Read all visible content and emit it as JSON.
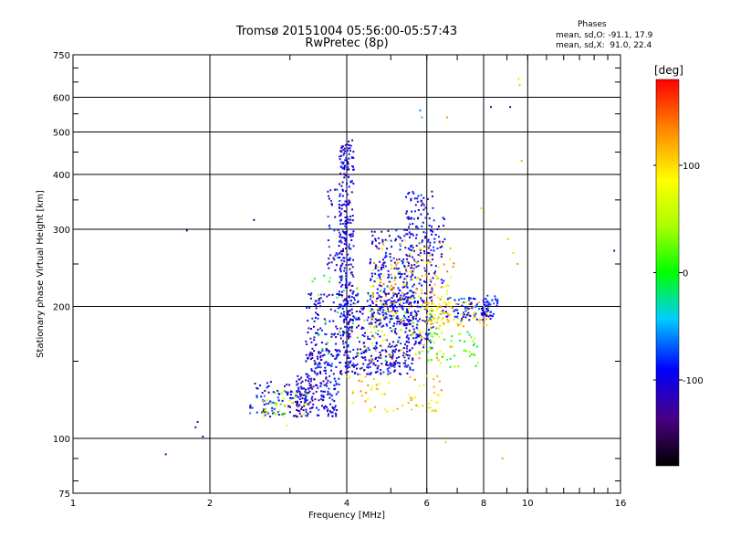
{
  "header": {
    "title_line1": "Tromsø 20151004 05:56:00-05:57:43",
    "title_line2": "RwPretec (8p)"
  },
  "stats": {
    "heading": "Phases",
    "line1": "mean, sd,O: -91.1, 17.9",
    "line2": "mean, sd,X:  91.0, 22.4"
  },
  "colorbar": {
    "label": "[deg]",
    "ticks": [
      {
        "value": 100,
        "label": "100"
      },
      {
        "value": 0,
        "label": "0"
      },
      {
        "value": -100,
        "label": "-100"
      }
    ],
    "range": [
      -180,
      180
    ]
  },
  "chart_data": {
    "type": "scatter",
    "xlabel": "Frequency [MHz]",
    "ylabel": "Stationary phase Virtual Height [km]",
    "xscale": "log",
    "yscale": "log",
    "xlim": [
      1,
      16
    ],
    "ylim": [
      75,
      750
    ],
    "x_ticks": [
      {
        "value": 1,
        "label": "1"
      },
      {
        "value": 2,
        "label": "2"
      },
      {
        "value": 4,
        "label": "4"
      },
      {
        "value": 6,
        "label": "6"
      },
      {
        "value": 8,
        "label": "8"
      },
      {
        "value": 10,
        "label": "10"
      },
      {
        "value": 16,
        "label": "16"
      }
    ],
    "y_ticks": [
      {
        "value": 75,
        "label": "75"
      },
      {
        "value": 100,
        "label": "100"
      },
      {
        "value": 200,
        "label": "200"
      },
      {
        "value": 300,
        "label": "300"
      },
      {
        "value": 400,
        "label": "400"
      },
      {
        "value": 500,
        "label": "500"
      },
      {
        "value": 600,
        "label": "600"
      },
      {
        "value": 750,
        "label": "750"
      }
    ],
    "grid_x": [
      2,
      4,
      6,
      8,
      10
    ],
    "grid_y": [
      100,
      200,
      300,
      400,
      500,
      600
    ],
    "minor_x": [
      3,
      5,
      7,
      9,
      11,
      12,
      13,
      14,
      15
    ],
    "minor_y": [
      80,
      90,
      150,
      250,
      350,
      450,
      550,
      650,
      700
    ],
    "points": [
      [
        1.6,
        92,
        -120
      ],
      [
        1.78,
        298,
        -120
      ],
      [
        1.88,
        109,
        -110
      ],
      [
        1.86,
        106,
        -130
      ],
      [
        1.93,
        101,
        -90
      ],
      [
        2.5,
        315,
        -130
      ],
      [
        2.95,
        107,
        90
      ],
      [
        8.3,
        570,
        -120
      ],
      [
        9.15,
        570,
        -120
      ],
      [
        9.55,
        660,
        100
      ],
      [
        9.6,
        640,
        110
      ],
      [
        9.7,
        430,
        120
      ],
      [
        6.65,
        540,
        130
      ],
      [
        5.8,
        560,
        -60
      ],
      [
        5.85,
        540,
        -20
      ],
      [
        15.5,
        268,
        -120
      ],
      [
        8.8,
        90,
        20
      ],
      [
        6.6,
        98,
        110
      ],
      [
        9.05,
        285,
        110
      ],
      [
        9.3,
        265,
        100
      ],
      [
        7.9,
        335,
        100
      ],
      [
        9.5,
        250,
        130
      ]
    ],
    "clusters": [
      {
        "n": 110,
        "x": [
          2.45,
          3.3
        ],
        "y": [
          112,
          135
        ],
        "phase": [
          -140,
          -60
        ]
      },
      {
        "n": 40,
        "x": [
          2.6,
          3.3
        ],
        "y": [
          112,
          130
        ],
        "phase": [
          -10,
          130
        ]
      },
      {
        "n": 150,
        "x": [
          3.1,
          3.85
        ],
        "y": [
          112,
          140
        ],
        "phase": [
          -140,
          -70
        ]
      },
      {
        "n": 260,
        "x": [
          3.25,
          5.6
        ],
        "y": [
          140,
          160
        ],
        "phase": [
          -135,
          -70
        ]
      },
      {
        "n": 300,
        "x": [
          3.25,
          5.8
        ],
        "y": [
          160,
          215
        ],
        "phase": [
          -135,
          -70
        ]
      },
      {
        "n": 260,
        "x": [
          3.85,
          4.15
        ],
        "y": [
          170,
          480
        ],
        "phase": [
          -135,
          -75
        ]
      },
      {
        "n": 60,
        "x": [
          3.6,
          4.0
        ],
        "y": [
          230,
          370
        ],
        "phase": [
          -130,
          -70
        ]
      },
      {
        "n": 230,
        "x": [
          4.5,
          5.6
        ],
        "y": [
          180,
          300
        ],
        "phase": [
          -130,
          -70
        ]
      },
      {
        "n": 210,
        "x": [
          5.4,
          6.2
        ],
        "y": [
          160,
          370
        ],
        "phase": [
          -130,
          -70
        ]
      },
      {
        "n": 160,
        "x": [
          4.5,
          6.8
        ],
        "y": [
          150,
          290
        ],
        "phase": [
          60,
          140
        ]
      },
      {
        "n": 90,
        "x": [
          6.0,
          8.2
        ],
        "y": [
          180,
          205
        ],
        "phase": [
          70,
          140
        ]
      },
      {
        "n": 70,
        "x": [
          6.5,
          8.3
        ],
        "y": [
          185,
          210
        ],
        "phase": [
          -120,
          -60
        ]
      },
      {
        "n": 50,
        "x": [
          6.0,
          7.8
        ],
        "y": [
          145,
          175
        ],
        "phase": [
          -20,
          60
        ]
      },
      {
        "n": 70,
        "x": [
          4.0,
          6.5
        ],
        "y": [
          115,
          140
        ],
        "phase": [
          60,
          140
        ]
      },
      {
        "n": 60,
        "x": [
          3.3,
          6.5
        ],
        "y": [
          150,
          240
        ],
        "phase": [
          -30,
          60
        ]
      },
      {
        "n": 30,
        "x": [
          6.1,
          6.6
        ],
        "y": [
          220,
          320
        ],
        "phase": [
          -120,
          -70
        ]
      },
      {
        "n": 40,
        "x": [
          7.9,
          8.6
        ],
        "y": [
          190,
          215
        ],
        "phase": [
          -120,
          -60
        ]
      },
      {
        "n": 25,
        "x": [
          5.0,
          7.0
        ],
        "y": [
          210,
          260
        ],
        "phase": [
          100,
          150
        ]
      }
    ]
  }
}
